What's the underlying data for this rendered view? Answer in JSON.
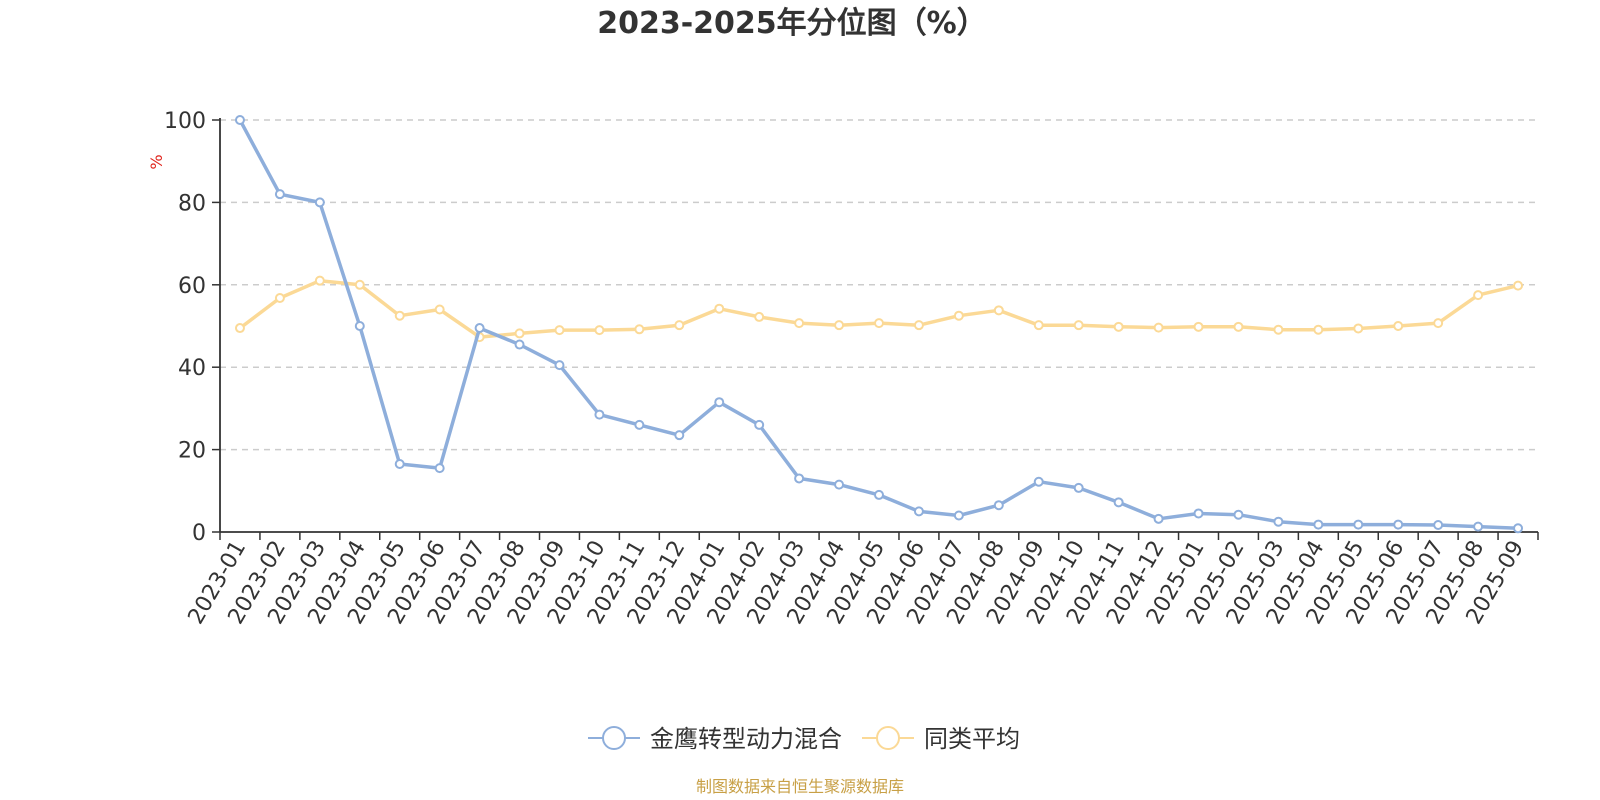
{
  "colors": {
    "series1": "#8eaedb",
    "series2": "#fbd996",
    "grid": "#cccccc",
    "axis": "#333333",
    "ylabel": "#e0241c",
    "source": "#c8a046"
  },
  "chart_data": {
    "type": "line",
    "title": "2023-2025年分位图（%）",
    "ylabel": "%",
    "ylim": [
      0,
      100
    ],
    "yticks": [
      0,
      20,
      40,
      60,
      80,
      100
    ],
    "grid": "horizontal-dashed",
    "legend_position": "bottom-center",
    "x": [
      "2023-01",
      "2023-02",
      "2023-03",
      "2023-04",
      "2023-05",
      "2023-06",
      "2023-07",
      "2023-08",
      "2023-09",
      "2023-10",
      "2023-11",
      "2023-12",
      "2024-01",
      "2024-02",
      "2024-03",
      "2024-04",
      "2024-05",
      "2024-06",
      "2024-07",
      "2024-08",
      "2024-09",
      "2024-10",
      "2024-11",
      "2024-12",
      "2025-01",
      "2025-02",
      "2025-03",
      "2025-04",
      "2025-05",
      "2025-06",
      "2025-07",
      "2025-08",
      "2025-09"
    ],
    "series": [
      {
        "name": "金鹰转型动力混合",
        "values": [
          100,
          82,
          80,
          50,
          16.5,
          15.5,
          49.5,
          45.5,
          40.5,
          28.5,
          26,
          23.5,
          31.5,
          26,
          13,
          11.5,
          9,
          5,
          4,
          6.5,
          12.2,
          10.7,
          7.2,
          3.2,
          4.5,
          4.2,
          2.5,
          1.8,
          1.8,
          1.8,
          1.7,
          1.3,
          0.9
        ]
      },
      {
        "name": "同类平均",
        "values": [
          49.5,
          56.8,
          61,
          60,
          52.5,
          54,
          47.3,
          48.2,
          49,
          49,
          49.2,
          50.2,
          54.2,
          52.2,
          50.7,
          50.2,
          50.7,
          50.2,
          52.5,
          53.8,
          50.2,
          50.2,
          49.8,
          49.6,
          49.8,
          49.8,
          49.1,
          49.1,
          49.4,
          50,
          50.7,
          57.5,
          59.8
        ]
      }
    ],
    "source_note": "制图数据来自恒生聚源数据库"
  }
}
